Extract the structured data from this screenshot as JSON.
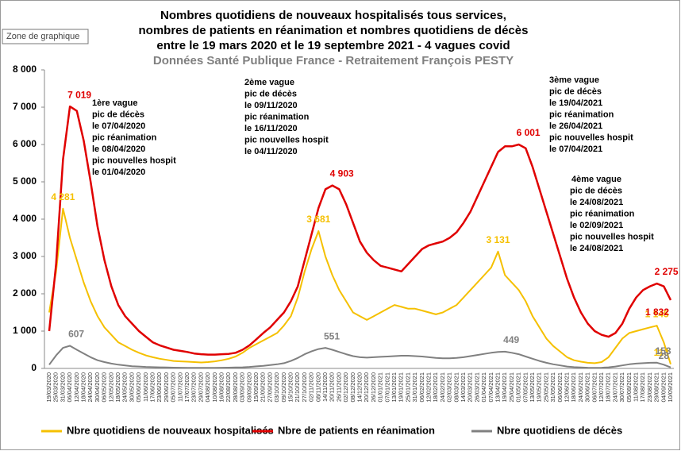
{
  "chart_data": {
    "type": "line",
    "title": [
      "Nombres quotidiens de nouveaux hospitalisés tous services,",
      "nombres de patients en réanimation et nombres quotidiens de décès",
      "entre le 19 mars 2020 et le 19 septembre 2021 - 4 vagues covid"
    ],
    "subtitle": "Données Santé Publique France - Retraitement François PESTY",
    "tooltip": "Zone de graphique",
    "categories": [
      "19/03/2020",
      "25/03/2020",
      "31/03/2020",
      "06/04/2020",
      "12/04/2020",
      "18/04/2020",
      "24/04/2020",
      "30/04/2020",
      "06/05/2020",
      "12/05/2020",
      "18/05/2020",
      "24/05/2020",
      "30/05/2020",
      "05/06/2020",
      "11/06/2020",
      "17/06/2020",
      "23/06/2020",
      "29/06/2020",
      "05/07/2020",
      "11/07/2020",
      "17/07/2020",
      "23/07/2020",
      "29/07/2020",
      "04/08/2020",
      "10/08/2020",
      "16/08/2020",
      "22/08/2020",
      "28/08/2020",
      "03/09/2020",
      "09/09/2020",
      "15/09/2020",
      "21/09/2020",
      "27/09/2020",
      "03/10/2020",
      "09/10/2020",
      "15/10/2020",
      "21/10/2020",
      "27/10/2020",
      "02/11/2020",
      "08/11/2020",
      "14/11/2020",
      "20/11/2020",
      "26/11/2020",
      "02/12/2020",
      "08/12/2020",
      "14/12/2020",
      "20/12/2020",
      "26/12/2020",
      "01/01/2021",
      "07/01/2021",
      "13/01/2021",
      "19/01/2021",
      "25/01/2021",
      "31/01/2021",
      "06/02/2021",
      "12/02/2021",
      "18/02/2021",
      "24/02/2021",
      "02/03/2021",
      "08/03/2021",
      "14/03/2021",
      "20/03/2021",
      "26/03/2021",
      "01/04/2021",
      "07/04/2021",
      "13/04/2021",
      "19/04/2021",
      "25/04/2021",
      "01/05/2021",
      "07/05/2021",
      "13/05/2021",
      "19/05/2021",
      "25/05/2021",
      "31/05/2021",
      "06/06/2021",
      "12/06/2021",
      "18/06/2021",
      "24/06/2021",
      "30/06/2021",
      "06/07/2021",
      "12/07/2021",
      "18/07/2021",
      "24/07/2021",
      "30/07/2021",
      "05/08/2021",
      "11/08/2021",
      "17/08/2021",
      "23/08/2021",
      "29/08/2021",
      "04/09/2021",
      "10/09/2021"
    ],
    "series": [
      {
        "name": "Nbre quotidiens de nouveaux hospitalisés",
        "color": "#f5c000",
        "values": [
          1500,
          2600,
          4281,
          3500,
          2900,
          2300,
          1800,
          1400,
          1100,
          900,
          700,
          600,
          500,
          420,
          350,
          300,
          260,
          230,
          200,
          190,
          180,
          170,
          160,
          170,
          190,
          220,
          260,
          320,
          420,
          550,
          650,
          750,
          850,
          950,
          1150,
          1400,
          1900,
          2600,
          3200,
          3681,
          3000,
          2500,
          2100,
          1800,
          1500,
          1400,
          1300,
          1400,
          1500,
          1600,
          1700,
          1650,
          1600,
          1600,
          1550,
          1500,
          1450,
          1500,
          1600,
          1700,
          1900,
          2100,
          2300,
          2500,
          2700,
          3131,
          2500,
          2300,
          2100,
          1800,
          1400,
          1100,
          800,
          600,
          450,
          300,
          220,
          180,
          150,
          140,
          170,
          300,
          550,
          800,
          950,
          1000,
          1050,
          1100,
          1145,
          700,
          113
        ],
        "value_labels": [
          null,
          null,
          "4 281",
          null,
          null,
          null,
          null,
          null,
          null,
          null,
          null,
          null,
          null,
          null,
          null,
          null,
          null,
          null,
          null,
          null,
          null,
          null,
          null,
          null,
          null,
          null,
          null,
          null,
          null,
          null,
          null,
          null,
          null,
          null,
          null,
          null,
          null,
          null,
          null,
          "3 681",
          null,
          null,
          null,
          null,
          null,
          null,
          null,
          null,
          null,
          null,
          null,
          null,
          null,
          null,
          null,
          null,
          null,
          null,
          null,
          null,
          null,
          null,
          null,
          null,
          null,
          "3 131",
          null,
          null,
          null,
          null,
          null,
          null,
          null,
          null,
          null,
          null,
          null,
          null,
          null,
          null,
          null,
          null,
          null,
          null,
          null,
          null,
          null,
          null,
          "1 145",
          null,
          "113"
        ]
      },
      {
        "name": "Nbre de patients en réanimation",
        "color": "#e00000",
        "values": [
          1000,
          2800,
          5600,
          7019,
          6900,
          6100,
          5000,
          3800,
          2900,
          2200,
          1700,
          1400,
          1200,
          1000,
          850,
          700,
          620,
          560,
          500,
          470,
          440,
          400,
          380,
          370,
          370,
          380,
          390,
          420,
          500,
          620,
          780,
          950,
          1100,
          1300,
          1500,
          1800,
          2200,
          2900,
          3600,
          4300,
          4800,
          4903,
          4800,
          4400,
          3900,
          3400,
          3100,
          2900,
          2750,
          2700,
          2650,
          2600,
          2800,
          3000,
          3200,
          3300,
          3350,
          3400,
          3500,
          3650,
          3900,
          4200,
          4600,
          5000,
          5400,
          5800,
          5950,
          5950,
          6001,
          5900,
          5400,
          4800,
          4200,
          3600,
          3000,
          2400,
          1900,
          1500,
          1200,
          1000,
          900,
          850,
          950,
          1200,
          1600,
          1900,
          2100,
          2200,
          2275,
          2200,
          1832
        ],
        "value_labels": [
          null,
          null,
          null,
          "7 019",
          null,
          null,
          null,
          null,
          null,
          null,
          null,
          null,
          null,
          null,
          null,
          null,
          null,
          null,
          null,
          null,
          null,
          null,
          null,
          null,
          null,
          null,
          null,
          null,
          null,
          null,
          null,
          null,
          null,
          null,
          null,
          null,
          null,
          null,
          null,
          null,
          null,
          "4 903",
          null,
          null,
          null,
          null,
          null,
          null,
          null,
          null,
          null,
          null,
          null,
          null,
          null,
          null,
          null,
          null,
          null,
          null,
          null,
          null,
          null,
          null,
          null,
          null,
          null,
          null,
          "6 001",
          null,
          null,
          null,
          null,
          null,
          null,
          null,
          null,
          null,
          null,
          null,
          null,
          null,
          null,
          null,
          null,
          null,
          null,
          null,
          "2 275",
          null,
          "1 832"
        ]
      },
      {
        "name": "Nbre quotidiens de décès",
        "color": "#808080",
        "values": [
          100,
          350,
          550,
          607,
          500,
          400,
          300,
          220,
          170,
          130,
          100,
          80,
          60,
          50,
          40,
          35,
          30,
          25,
          22,
          20,
          18,
          16,
          15,
          16,
          18,
          20,
          22,
          25,
          30,
          40,
          55,
          70,
          90,
          110,
          140,
          200,
          280,
          380,
          460,
          520,
          551,
          500,
          440,
          380,
          330,
          300,
          290,
          300,
          310,
          320,
          330,
          340,
          340,
          330,
          320,
          300,
          280,
          270,
          270,
          280,
          300,
          330,
          360,
          390,
          420,
          440,
          449,
          420,
          380,
          320,
          260,
          200,
          150,
          110,
          80,
          50,
          35,
          25,
          20,
          18,
          20,
          30,
          50,
          80,
          110,
          130,
          140,
          150,
          153,
          100,
          28
        ],
        "value_labels": [
          null,
          null,
          null,
          "607",
          null,
          null,
          null,
          null,
          null,
          null,
          null,
          null,
          null,
          null,
          null,
          null,
          null,
          null,
          null,
          null,
          null,
          null,
          null,
          null,
          null,
          null,
          null,
          null,
          null,
          null,
          null,
          null,
          null,
          null,
          null,
          null,
          null,
          null,
          null,
          null,
          "551",
          null,
          null,
          null,
          null,
          null,
          null,
          null,
          null,
          null,
          null,
          null,
          null,
          null,
          null,
          null,
          null,
          null,
          null,
          null,
          null,
          null,
          null,
          null,
          null,
          null,
          "449",
          null,
          null,
          null,
          null,
          null,
          null,
          null,
          null,
          null,
          null,
          null,
          null,
          null,
          null,
          null,
          null,
          null,
          null,
          null,
          null,
          null,
          "153",
          null,
          "28"
        ]
      }
    ],
    "ylim": [
      0,
      8000
    ],
    "yticks": [
      0,
      {
        "value": 1000,
        "label": "1 000"
      },
      {
        "value": 2000,
        "label": "2 000"
      },
      {
        "value": 3000,
        "label": "3 000"
      },
      {
        "value": 4000,
        "label": "4 000"
      },
      {
        "value": 5000,
        "label": "5 000"
      },
      {
        "value": 6000,
        "label": "6 000"
      },
      {
        "value": 7000,
        "label": "7 000"
      },
      {
        "value": 8000,
        "label": "8 000"
      }
    ],
    "grid": false,
    "annotations": [
      [
        "1ère vague",
        "pic de décès",
        "le 07/04/2020",
        "pic réanimation",
        "le 08/04/2020",
        "pic nouvelles hospit",
        "le 01/04/2020"
      ],
      [
        "2ème vague",
        "pic de décès",
        "le 09/11/2020",
        "pic réanimation",
        "le 16/11/2020",
        "pic nouvelles hospit",
        "le 04/11/2020"
      ],
      [
        "3ème vague",
        "pic de décès",
        "le 19/04/2021",
        "pic réanimation",
        "le 26/04/2021",
        "pic nouvelles hospit",
        "le 07/04/2021"
      ],
      [
        "4ème vague",
        "pic de décès",
        "le 24/08/2021",
        "pic réanimation",
        "le 02/09/2021",
        "pic nouvelles hospit",
        "le 24/08/2021"
      ]
    ]
  }
}
